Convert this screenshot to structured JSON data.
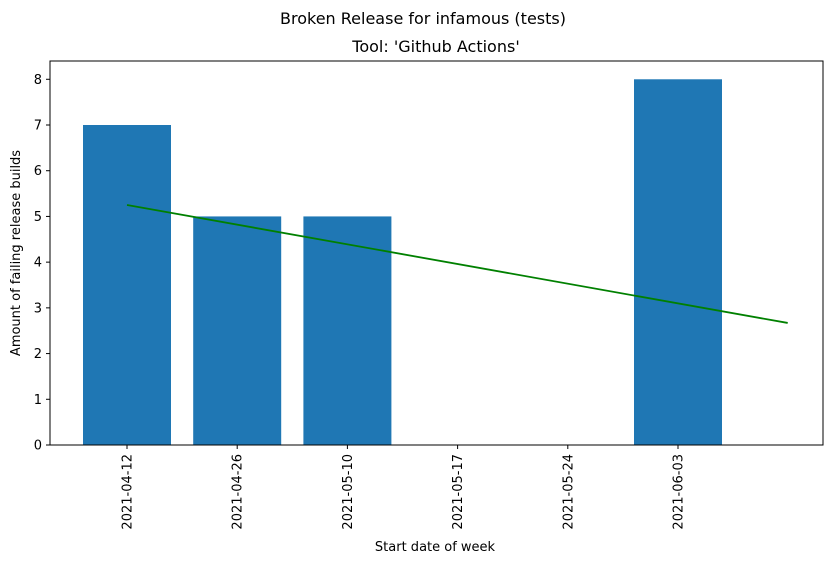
{
  "chart_data": {
    "type": "bar",
    "title": "Broken Release for infamous (tests)",
    "subtitle": "Tool: 'Github Actions'",
    "xlabel": "Start date of week",
    "ylabel": "Amount of failing release builds",
    "categories": [
      "2021-04-12",
      "2021-04-26",
      "2021-05-10",
      "2021-05-17",
      "2021-05-24",
      "2021-06-03"
    ],
    "values": [
      7,
      5,
      5,
      0,
      0,
      8
    ],
    "ylim": [
      0,
      8.4
    ],
    "yticks": [
      0,
      1,
      2,
      3,
      4,
      5,
      6,
      7,
      8
    ],
    "trend_line": {
      "start": {
        "x": "2021-04-12",
        "y": 5.25
      },
      "end": {
        "y": 2.67
      }
    },
    "grid": false,
    "colors": {
      "bar": "#1f77b4",
      "trend": "#008000",
      "axis": "#000000"
    }
  }
}
